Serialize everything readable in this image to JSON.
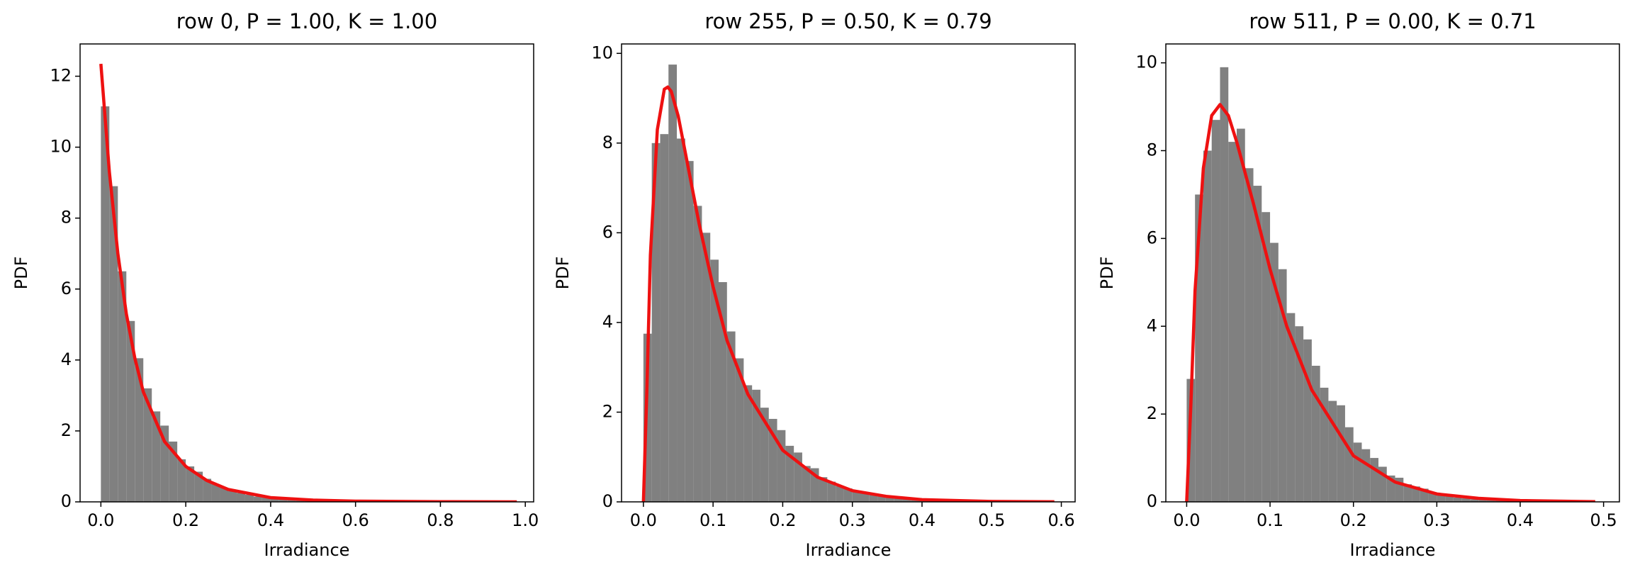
{
  "chart_data": [
    {
      "type": "histogram",
      "title": "row 0, P = 1.00, K = 1.00",
      "xlabel": "Irradiance",
      "ylabel": "PDF",
      "bins": [
        0,
        0.02,
        0.04,
        0.06,
        0.08,
        0.1,
        0.12,
        0.14,
        0.16,
        0.18,
        0.2,
        0.22,
        0.24,
        0.26,
        0.28,
        0.3,
        0.32,
        0.34,
        0.36,
        0.38,
        0.4,
        0.42,
        0.44,
        0.46,
        0.48,
        0.5,
        0.52,
        0.54,
        0.56,
        0.58,
        0.6,
        0.62,
        0.64,
        0.66,
        0.68,
        0.7,
        0.72,
        0.74,
        0.76,
        0.78,
        0.8,
        0.82,
        0.84,
        0.86,
        0.88,
        0.9,
        0.92,
        0.94,
        0.96,
        0.98
      ],
      "values": [
        11.15,
        8.9,
        6.5,
        5.1,
        4.05,
        3.2,
        2.55,
        2.15,
        1.7,
        1.2,
        1.0,
        0.85,
        0.65,
        0.5,
        0.4,
        0.3,
        0.25,
        0.2,
        0.15,
        0.12,
        0.1,
        0.08,
        0.06,
        0.05,
        0.04,
        0.03,
        0.025,
        0.02,
        0.015,
        0.01,
        0.01,
        0.008,
        0.006,
        0.005,
        0.004,
        0.003,
        0.003,
        0.002,
        0.002,
        0.001,
        0,
        0,
        0,
        0,
        0,
        0,
        0,
        0,
        0
      ],
      "color": "#808080",
      "line": {
        "x": [
          0,
          0.02,
          0.04,
          0.06,
          0.08,
          0.1,
          0.15,
          0.2,
          0.25,
          0.3,
          0.4,
          0.5,
          0.6,
          0.8,
          0.98
        ],
        "values": [
          12.35,
          9.3,
          7.0,
          5.3,
          4.05,
          3.1,
          1.7,
          1.0,
          0.6,
          0.35,
          0.12,
          0.05,
          0.02,
          0.005,
          0.001
        ],
        "color": "#ee1111"
      },
      "xlim": [
        -0.049,
        1.0197
      ],
      "ylim": [
        0,
        12.91
      ],
      "xticks": [
        {
          "value": 0,
          "label": "0.0"
        },
        {
          "value": 0.2,
          "label": "0.2"
        },
        {
          "value": 0.4,
          "label": "0.4"
        },
        {
          "value": 0.6,
          "label": "0.6"
        },
        {
          "value": 0.8,
          "label": "0.8"
        },
        {
          "value": 1.0,
          "label": "1.0"
        }
      ],
      "yticks": [
        0,
        2,
        4,
        6,
        8,
        10,
        12
      ]
    },
    {
      "type": "histogram",
      "title": "row 255, P = 0.50, K = 0.79",
      "xlabel": "Irradiance",
      "ylabel": "PDF",
      "bins": [
        0,
        0.012,
        0.024,
        0.036,
        0.048,
        0.06,
        0.072,
        0.084,
        0.096,
        0.108,
        0.12,
        0.132,
        0.144,
        0.156,
        0.168,
        0.18,
        0.192,
        0.204,
        0.216,
        0.228,
        0.24,
        0.252,
        0.264,
        0.276,
        0.288,
        0.3,
        0.312,
        0.324,
        0.336,
        0.348,
        0.36,
        0.372,
        0.384,
        0.396,
        0.408,
        0.42,
        0.432,
        0.444,
        0.456,
        0.468,
        0.48,
        0.492,
        0.504,
        0.516,
        0.528,
        0.54,
        0.552,
        0.564,
        0.576,
        0.588
      ],
      "values": [
        3.75,
        8.0,
        8.2,
        9.75,
        8.1,
        7.6,
        6.6,
        6.0,
        5.4,
        4.9,
        3.8,
        3.2,
        2.6,
        2.5,
        2.1,
        1.85,
        1.6,
        1.25,
        1.1,
        0.8,
        0.75,
        0.55,
        0.45,
        0.35,
        0.3,
        0.22,
        0.2,
        0.15,
        0.12,
        0.1,
        0.08,
        0.06,
        0.05,
        0.04,
        0.03,
        0.025,
        0.02,
        0.015,
        0.012,
        0.01,
        0.008,
        0.006,
        0.005,
        0.004,
        0.003,
        0.002,
        0.002,
        0.001,
        0.001
      ],
      "color": "#808080",
      "line": {
        "x": [
          0,
          0.005,
          0.01,
          0.02,
          0.03,
          0.035,
          0.04,
          0.05,
          0.06,
          0.08,
          0.1,
          0.12,
          0.15,
          0.2,
          0.25,
          0.3,
          0.35,
          0.4,
          0.5,
          0.59
        ],
        "values": [
          0,
          2.5,
          5.5,
          8.3,
          9.2,
          9.25,
          9.15,
          8.6,
          7.8,
          6.2,
          4.8,
          3.6,
          2.4,
          1.15,
          0.55,
          0.25,
          0.12,
          0.05,
          0.01,
          0.002
        ],
        "color": "#ee1111"
      },
      "xlim": [
        -0.0314,
        0.6198
      ],
      "ylim": [
        0,
        10.21
      ],
      "xticks": [
        {
          "value": 0,
          "label": "0.0"
        },
        {
          "value": 0.1,
          "label": "0.1"
        },
        {
          "value": 0.2,
          "label": "0.2"
        },
        {
          "value": 0.3,
          "label": "0.3"
        },
        {
          "value": 0.4,
          "label": "0.4"
        },
        {
          "value": 0.5,
          "label": "0.5"
        },
        {
          "value": 0.6,
          "label": "0.6"
        }
      ],
      "yticks": [
        0,
        2,
        4,
        6,
        8,
        10
      ]
    },
    {
      "type": "histogram",
      "title": "row 511, P = 0.00, K = 0.71",
      "xlabel": "Irradiance",
      "ylabel": "PDF",
      "bins": [
        0,
        0.01,
        0.02,
        0.03,
        0.04,
        0.05,
        0.06,
        0.07,
        0.08,
        0.09,
        0.1,
        0.11,
        0.12,
        0.13,
        0.14,
        0.15,
        0.16,
        0.17,
        0.18,
        0.19,
        0.2,
        0.21,
        0.22,
        0.23,
        0.24,
        0.25,
        0.26,
        0.27,
        0.28,
        0.29,
        0.3,
        0.31,
        0.32,
        0.33,
        0.34,
        0.35,
        0.36,
        0.37,
        0.38,
        0.39,
        0.4,
        0.41,
        0.42,
        0.43,
        0.44,
        0.45,
        0.46,
        0.47,
        0.48,
        0.49
      ],
      "values": [
        2.8,
        7.0,
        8.0,
        8.7,
        9.9,
        8.2,
        8.5,
        7.6,
        7.2,
        6.6,
        5.9,
        5.3,
        4.3,
        4.0,
        3.7,
        3.1,
        2.6,
        2.3,
        2.2,
        1.7,
        1.35,
        1.2,
        1.0,
        0.8,
        0.6,
        0.55,
        0.4,
        0.35,
        0.3,
        0.22,
        0.18,
        0.13,
        0.1,
        0.08,
        0.06,
        0.05,
        0.04,
        0.03,
        0.025,
        0.02,
        0.015,
        0.012,
        0.01,
        0.008,
        0.006,
        0.005,
        0.004,
        0.003,
        0.002
      ],
      "color": "#808080",
      "line": {
        "x": [
          0,
          0.005,
          0.01,
          0.02,
          0.03,
          0.04,
          0.05,
          0.06,
          0.08,
          0.1,
          0.12,
          0.15,
          0.2,
          0.25,
          0.3,
          0.35,
          0.4,
          0.49
        ],
        "values": [
          0,
          2.2,
          4.8,
          7.6,
          8.8,
          9.05,
          8.8,
          8.2,
          6.8,
          5.3,
          4.0,
          2.55,
          1.05,
          0.45,
          0.18,
          0.08,
          0.03,
          0.005
        ],
        "color": "#ee1111"
      },
      "xlim": [
        -0.025,
        0.519
      ],
      "ylim": [
        0,
        10.43
      ],
      "xticks": [
        {
          "value": 0,
          "label": "0.0"
        },
        {
          "value": 0.1,
          "label": "0.1"
        },
        {
          "value": 0.2,
          "label": "0.2"
        },
        {
          "value": 0.3,
          "label": "0.3"
        },
        {
          "value": 0.4,
          "label": "0.4"
        },
        {
          "value": 0.5,
          "label": "0.5"
        }
      ],
      "yticks": [
        0,
        2,
        4,
        6,
        8,
        10
      ]
    }
  ]
}
